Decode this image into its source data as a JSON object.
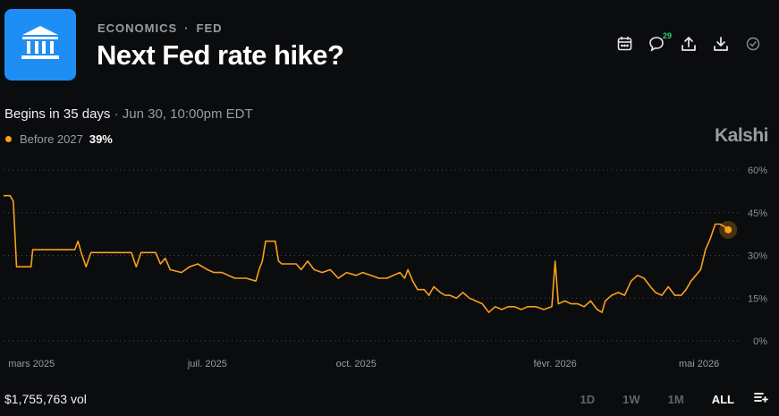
{
  "header": {
    "category": "ECONOMICS",
    "subcategory": "FED",
    "separator": "·",
    "title": "Next Fed rate hike?",
    "icons": {
      "logo": "bank-building-icon",
      "calendar": "calendar-icon",
      "comments": "comment-icon",
      "share": "share-icon",
      "download": "download-icon",
      "check": "check-circle-icon"
    },
    "comment_count": "29"
  },
  "status": {
    "begins": "Begins in 35 days",
    "date": "· Jun 30, 10:00pm EDT"
  },
  "legend": {
    "label": "Before 2027",
    "value": "39%"
  },
  "brand": "Kalshi",
  "footer": {
    "volume": "$1,755,763 vol",
    "ranges": [
      "1D",
      "1W",
      "1M",
      "ALL"
    ],
    "active_range": "ALL",
    "menu_icon": "list-add-icon"
  },
  "colors": {
    "accent": "#f7a01d",
    "logo_bg": "#1e8ef5",
    "badge": "#2fd07a"
  },
  "chart_data": {
    "type": "line",
    "title": "",
    "xlabel": "",
    "ylabel": "",
    "x_tick_labels": [
      "mars 2025",
      "juil. 2025",
      "oct. 2025",
      "févr. 2026",
      "mai 2026"
    ],
    "y_tick_labels": [
      "60%",
      "45%",
      "30%",
      "15%",
      "0%"
    ],
    "y_ticks": [
      60,
      45,
      30,
      15,
      0
    ],
    "ylim": [
      0,
      60
    ],
    "grid": true,
    "x_range": [
      "2025-02-25",
      "2026-05-25"
    ],
    "series": [
      {
        "name": "Before 2027",
        "color": "#f7a01d",
        "points": [
          [
            "2025-02-25",
            51
          ],
          [
            "2025-03-01",
            51
          ],
          [
            "2025-03-03",
            49
          ],
          [
            "2025-03-05",
            26
          ],
          [
            "2025-03-10",
            26
          ],
          [
            "2025-03-14",
            26
          ],
          [
            "2025-03-15",
            32
          ],
          [
            "2025-03-25",
            32
          ],
          [
            "2025-04-10",
            32
          ],
          [
            "2025-04-12",
            35
          ],
          [
            "2025-04-14",
            31
          ],
          [
            "2025-04-17",
            26
          ],
          [
            "2025-04-20",
            31
          ],
          [
            "2025-05-05",
            31
          ],
          [
            "2025-05-15",
            31
          ],
          [
            "2025-05-18",
            26
          ],
          [
            "2025-05-21",
            31
          ],
          [
            "2025-05-30",
            31
          ],
          [
            "2025-06-02",
            27
          ],
          [
            "2025-06-05",
            29
          ],
          [
            "2025-06-08",
            25
          ],
          [
            "2025-06-15",
            24
          ],
          [
            "2025-06-20",
            26
          ],
          [
            "2025-06-25",
            27
          ],
          [
            "2025-07-01",
            25
          ],
          [
            "2025-07-05",
            24
          ],
          [
            "2025-07-10",
            24
          ],
          [
            "2025-07-18",
            22
          ],
          [
            "2025-07-25",
            22
          ],
          [
            "2025-07-31",
            21
          ],
          [
            "2025-08-02",
            25
          ],
          [
            "2025-08-04",
            28
          ],
          [
            "2025-08-06",
            35
          ],
          [
            "2025-08-12",
            35
          ],
          [
            "2025-08-14",
            28
          ],
          [
            "2025-08-16",
            27
          ],
          [
            "2025-08-25",
            27
          ],
          [
            "2025-08-28",
            25
          ],
          [
            "2025-09-01",
            28
          ],
          [
            "2025-09-05",
            25
          ],
          [
            "2025-09-10",
            24
          ],
          [
            "2025-09-15",
            25
          ],
          [
            "2025-09-20",
            22
          ],
          [
            "2025-09-25",
            24
          ],
          [
            "2025-10-01",
            23
          ],
          [
            "2025-10-05",
            24
          ],
          [
            "2025-10-10",
            23
          ],
          [
            "2025-10-15",
            22
          ],
          [
            "2025-10-20",
            22
          ],
          [
            "2025-10-28",
            24
          ],
          [
            "2025-10-31",
            22
          ],
          [
            "2025-11-02",
            25
          ],
          [
            "2025-11-05",
            21
          ],
          [
            "2025-11-08",
            18
          ],
          [
            "2025-11-12",
            18
          ],
          [
            "2025-11-15",
            16
          ],
          [
            "2025-11-18",
            19
          ],
          [
            "2025-11-22",
            17
          ],
          [
            "2025-11-25",
            16
          ],
          [
            "2025-11-28",
            16
          ],
          [
            "2025-12-02",
            15
          ],
          [
            "2025-12-06",
            17
          ],
          [
            "2025-12-10",
            15
          ],
          [
            "2025-12-14",
            14
          ],
          [
            "2025-12-18",
            13
          ],
          [
            "2025-12-22",
            10
          ],
          [
            "2025-12-26",
            12
          ],
          [
            "2025-12-30",
            11
          ],
          [
            "2026-01-03",
            12
          ],
          [
            "2026-01-07",
            12
          ],
          [
            "2026-01-11",
            11
          ],
          [
            "2026-01-15",
            12
          ],
          [
            "2026-01-20",
            12
          ],
          [
            "2026-01-25",
            11
          ],
          [
            "2026-01-30",
            12
          ],
          [
            "2026-02-01",
            28
          ],
          [
            "2026-02-03",
            13
          ],
          [
            "2026-02-07",
            14
          ],
          [
            "2026-02-11",
            13
          ],
          [
            "2026-02-15",
            13
          ],
          [
            "2026-02-19",
            12
          ],
          [
            "2026-02-23",
            14
          ],
          [
            "2026-02-27",
            11
          ],
          [
            "2026-03-02",
            10
          ],
          [
            "2026-03-04",
            14
          ],
          [
            "2026-03-08",
            16
          ],
          [
            "2026-03-12",
            17
          ],
          [
            "2026-03-16",
            16
          ],
          [
            "2026-03-20",
            21
          ],
          [
            "2026-03-24",
            23
          ],
          [
            "2026-03-28",
            22
          ],
          [
            "2026-04-01",
            19
          ],
          [
            "2026-04-04",
            17
          ],
          [
            "2026-04-08",
            16
          ],
          [
            "2026-04-12",
            19
          ],
          [
            "2026-04-16",
            16
          ],
          [
            "2026-04-20",
            16
          ],
          [
            "2026-04-23",
            18
          ],
          [
            "2026-04-26",
            21
          ],
          [
            "2026-04-29",
            23
          ],
          [
            "2026-05-02",
            25
          ],
          [
            "2026-05-05",
            32
          ],
          [
            "2026-05-08",
            36
          ],
          [
            "2026-05-11",
            41
          ],
          [
            "2026-05-14",
            41
          ],
          [
            "2026-05-17",
            40
          ],
          [
            "2026-05-19",
            39
          ]
        ]
      }
    ]
  }
}
